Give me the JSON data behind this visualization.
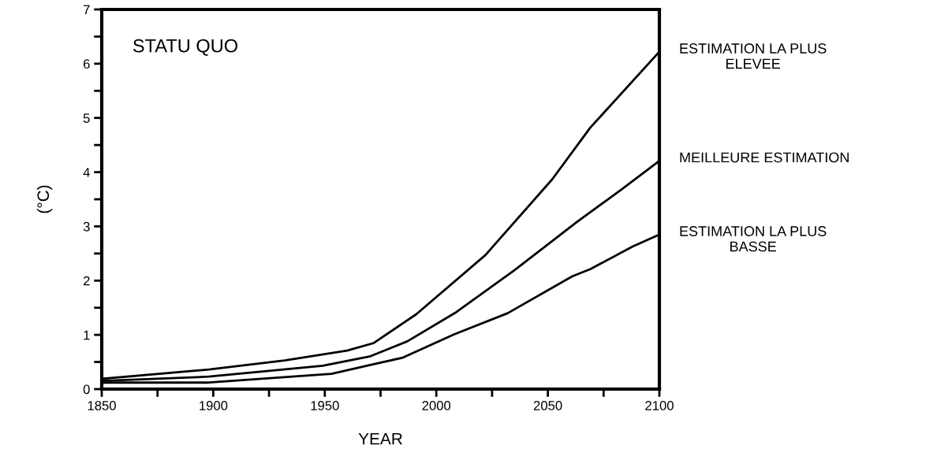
{
  "chart_data": {
    "type": "line",
    "xlabel": "YEAR",
    "ylabel": "(°C)",
    "annotations": [
      "STATU QUO"
    ],
    "xlim": [
      1850,
      2100
    ],
    "ylim": [
      0,
      7
    ],
    "xticks": [
      1850,
      {
        "value": 1875,
        "label": null
      },
      1900,
      {
        "value": 1925,
        "label": null
      },
      1950,
      {
        "value": 1975,
        "label": null
      },
      2000,
      {
        "value": 2025,
        "label": null
      },
      2050,
      {
        "value": 2075,
        "label": null
      },
      2100
    ],
    "yticks": [
      0,
      {
        "value": 0.5,
        "label": null
      },
      1,
      {
        "value": 1.5,
        "label": null
      },
      2,
      {
        "value": 2.5,
        "label": null
      },
      3,
      {
        "value": 3.5,
        "label": null
      },
      4,
      {
        "value": 4.5,
        "label": null
      },
      5,
      {
        "value": 5.5,
        "label": null
      },
      6,
      {
        "value": 6.5,
        "label": null
      },
      7
    ],
    "grid": false,
    "legend": false,
    "marker": "none",
    "line_style": "solid",
    "series": [
      {
        "name": "ESTIMATION LA PLUS\nELEVEE",
        "color": "#000000",
        "x": [
          1850,
          1898,
          1932,
          1960,
          1972,
          1991,
          2022,
          2052,
          2069,
          2100
        ],
        "values": [
          0.19,
          0.36,
          0.53,
          0.71,
          0.85,
          1.38,
          2.47,
          3.87,
          4.82,
          6.22
        ]
      },
      {
        "name": "MEILLEURE ESTIMATION",
        "color": "#000000",
        "x": [
          1850,
          1898,
          1949,
          1970,
          1987,
          2009,
          2035,
          2063,
          2083,
          2100
        ],
        "values": [
          0.15,
          0.23,
          0.43,
          0.6,
          0.88,
          1.42,
          2.19,
          3.08,
          3.68,
          4.21
        ]
      },
      {
        "name": "ESTIMATION LA PLUS\nBASSE",
        "color": "#000000",
        "x": [
          1850,
          1898,
          1953,
          1970,
          1985,
          2008,
          2032,
          2061,
          2069,
          2088,
          2100
        ],
        "values": [
          0.12,
          0.12,
          0.28,
          0.44,
          0.58,
          1.01,
          1.4,
          2.08,
          2.21,
          2.63,
          2.85
        ]
      }
    ]
  }
}
